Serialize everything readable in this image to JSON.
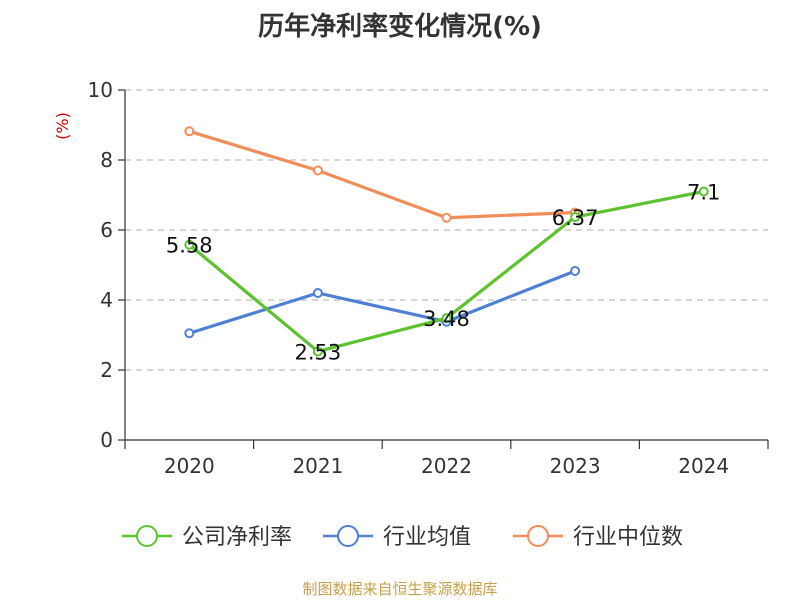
{
  "chart_data": {
    "type": "line",
    "title": "历年净利率变化情况(%)",
    "ylabel": "(%)",
    "xlabel": "",
    "categories": [
      "2020",
      "2021",
      "2022",
      "2023",
      "2024"
    ],
    "ylim": [
      0,
      10
    ],
    "yticks": [
      0,
      2,
      4,
      6,
      8,
      10
    ],
    "grid": true,
    "legend_position": "bottom",
    "series": [
      {
        "name": "公司净利率",
        "color": "#5cc22e",
        "values": [
          5.58,
          2.53,
          3.48,
          6.37,
          7.1
        ],
        "labels": [
          "5.58",
          "2.53",
          "3.48",
          "6.37",
          "7.1"
        ]
      },
      {
        "name": "行业均值",
        "color": "#4e80d6",
        "values": [
          3.05,
          4.2,
          3.38,
          4.83,
          null
        ],
        "labels": []
      },
      {
        "name": "行业中位数",
        "color": "#f28d5a",
        "values": [
          8.82,
          7.7,
          6.35,
          6.5,
          null
        ],
        "labels": []
      }
    ]
  },
  "footer": {
    "source": "制图数据来自恒生聚源数据库"
  }
}
